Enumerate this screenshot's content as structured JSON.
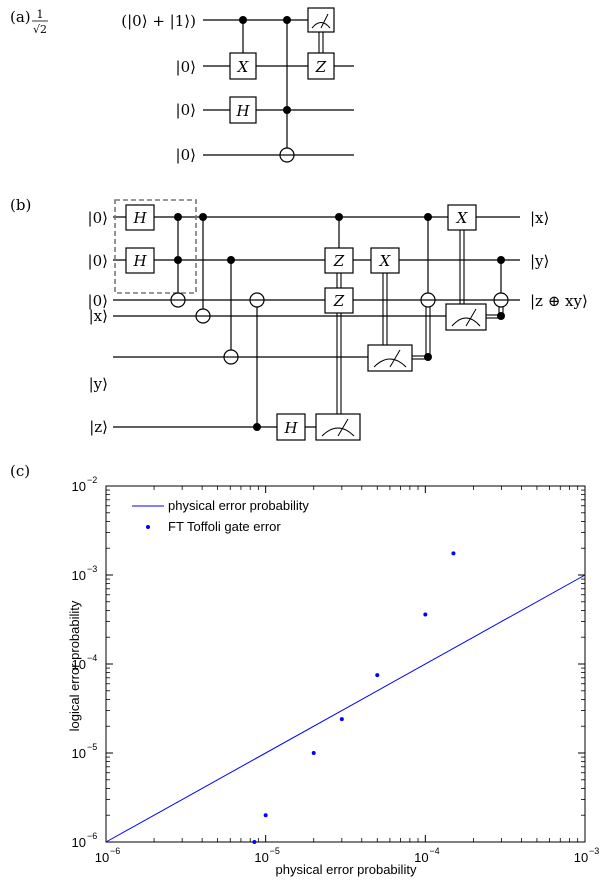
{
  "panels": {
    "a": {
      "label": "(a)",
      "inputs": [
        "(|0⟩ + |1⟩)",
        "|0⟩",
        "|0⟩",
        "|0⟩"
      ],
      "frac_num": "1",
      "frac_den": "√2",
      "gates": {
        "x": "X",
        "h": "H",
        "z": "Z"
      }
    },
    "b": {
      "label": "(b)",
      "inputs": [
        "|0⟩",
        "|0⟩",
        "|0⟩",
        "|x⟩",
        "|y⟩",
        "|z⟩"
      ],
      "outputs": [
        "|x⟩",
        "|y⟩",
        "|z ⊕ xy⟩"
      ],
      "gates": {
        "h": "H",
        "z": "Z",
        "x": "X"
      }
    },
    "c": {
      "label": "(c)"
    }
  },
  "chart_data": {
    "type": "scatter",
    "xlabel": "physical error probability",
    "ylabel": "logical error probability",
    "x_scale": "log",
    "y_scale": "log",
    "xlim": [
      1e-06,
      0.001
    ],
    "ylim": [
      1e-06,
      0.01
    ],
    "legend_position": "top-left",
    "x_ticks": [
      {
        "base": "10",
        "exp": "−6",
        "value": 1e-06
      },
      {
        "base": "10",
        "exp": "−5",
        "value": 1e-05
      },
      {
        "base": "10",
        "exp": "−4",
        "value": 0.0001
      },
      {
        "base": "10",
        "exp": "−3",
        "value": 0.001
      }
    ],
    "y_ticks": [
      {
        "base": "10",
        "exp": "−6",
        "value": 1e-06
      },
      {
        "base": "10",
        "exp": "−5",
        "value": 1e-05
      },
      {
        "base": "10",
        "exp": "−4",
        "value": 0.0001
      },
      {
        "base": "10",
        "exp": "−3",
        "value": 0.001
      },
      {
        "base": "10",
        "exp": "−2",
        "value": 0.01
      }
    ],
    "series": [
      {
        "name": "physical error probability",
        "kind": "line",
        "color": "#0000ff",
        "x": [
          1e-06,
          0.001
        ],
        "y": [
          1e-06,
          0.001
        ]
      },
      {
        "name": "FT Toffoli gate error",
        "kind": "points",
        "color": "#0000ff",
        "x": [
          8.5e-06,
          1e-05,
          2e-05,
          3e-05,
          5e-05,
          0.0001,
          0.00015
        ],
        "y": [
          1e-06,
          2e-06,
          1e-05,
          2.4e-05,
          7.5e-05,
          0.00036,
          0.00175
        ]
      }
    ]
  }
}
